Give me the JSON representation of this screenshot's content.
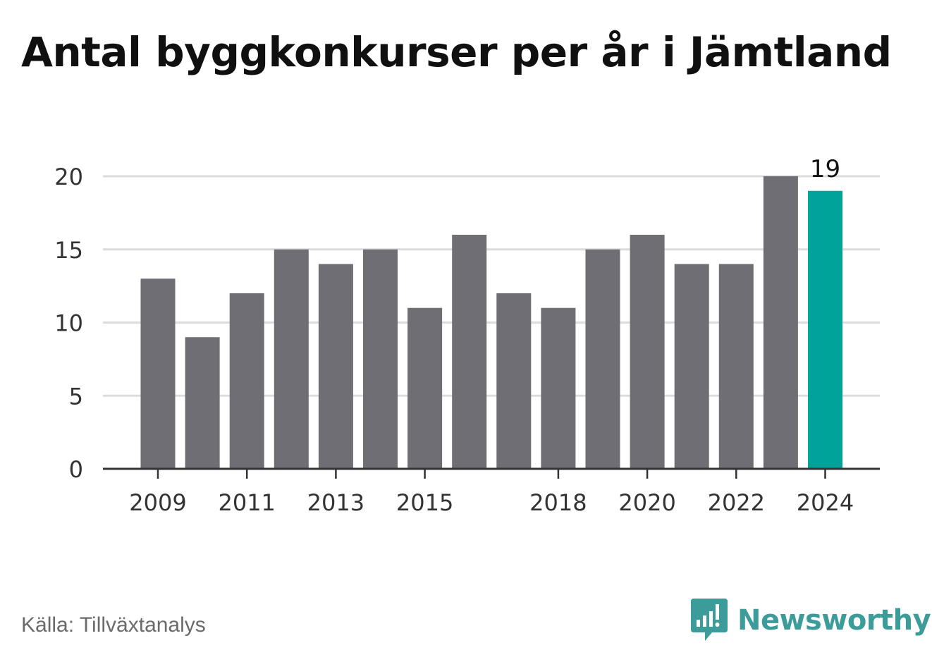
{
  "page": {
    "source_label": "Källa: Tillväxtanalys",
    "brand_name": "Newsworthy",
    "brand_logo_icon": "bar-chart-speech-bubble-icon"
  },
  "colors": {
    "bar": "#6e6e74",
    "highlight": "#00a39a",
    "grid": "#dcdcdc",
    "axis": "#333333",
    "tick_text": "#333333",
    "brand": "#3b9c99"
  },
  "chart_data": {
    "type": "bar",
    "title": "Antal byggkonkurser per år i Jämtland",
    "xlabel": "",
    "ylabel": "",
    "categories": [
      "2009",
      "2010",
      "2011",
      "2012",
      "2013",
      "2014",
      "2015",
      "2016",
      "2017",
      "2018",
      "2019",
      "2020",
      "2021",
      "2022",
      "2023",
      "2024"
    ],
    "values": [
      13,
      9,
      12,
      15,
      14,
      15,
      11,
      16,
      12,
      11,
      15,
      16,
      14,
      14,
      20,
      19
    ],
    "x_tick_labels": [
      "2009",
      "2011",
      "2013",
      "2015",
      "2018",
      "2020",
      "2022",
      "2024"
    ],
    "ylim": [
      0,
      20
    ],
    "y_ticks": [
      0,
      5,
      10,
      15,
      20
    ],
    "grid": "horizontal",
    "highlight_category": "2024",
    "data_labels": [
      {
        "category": "2024",
        "text": "19"
      }
    ]
  }
}
